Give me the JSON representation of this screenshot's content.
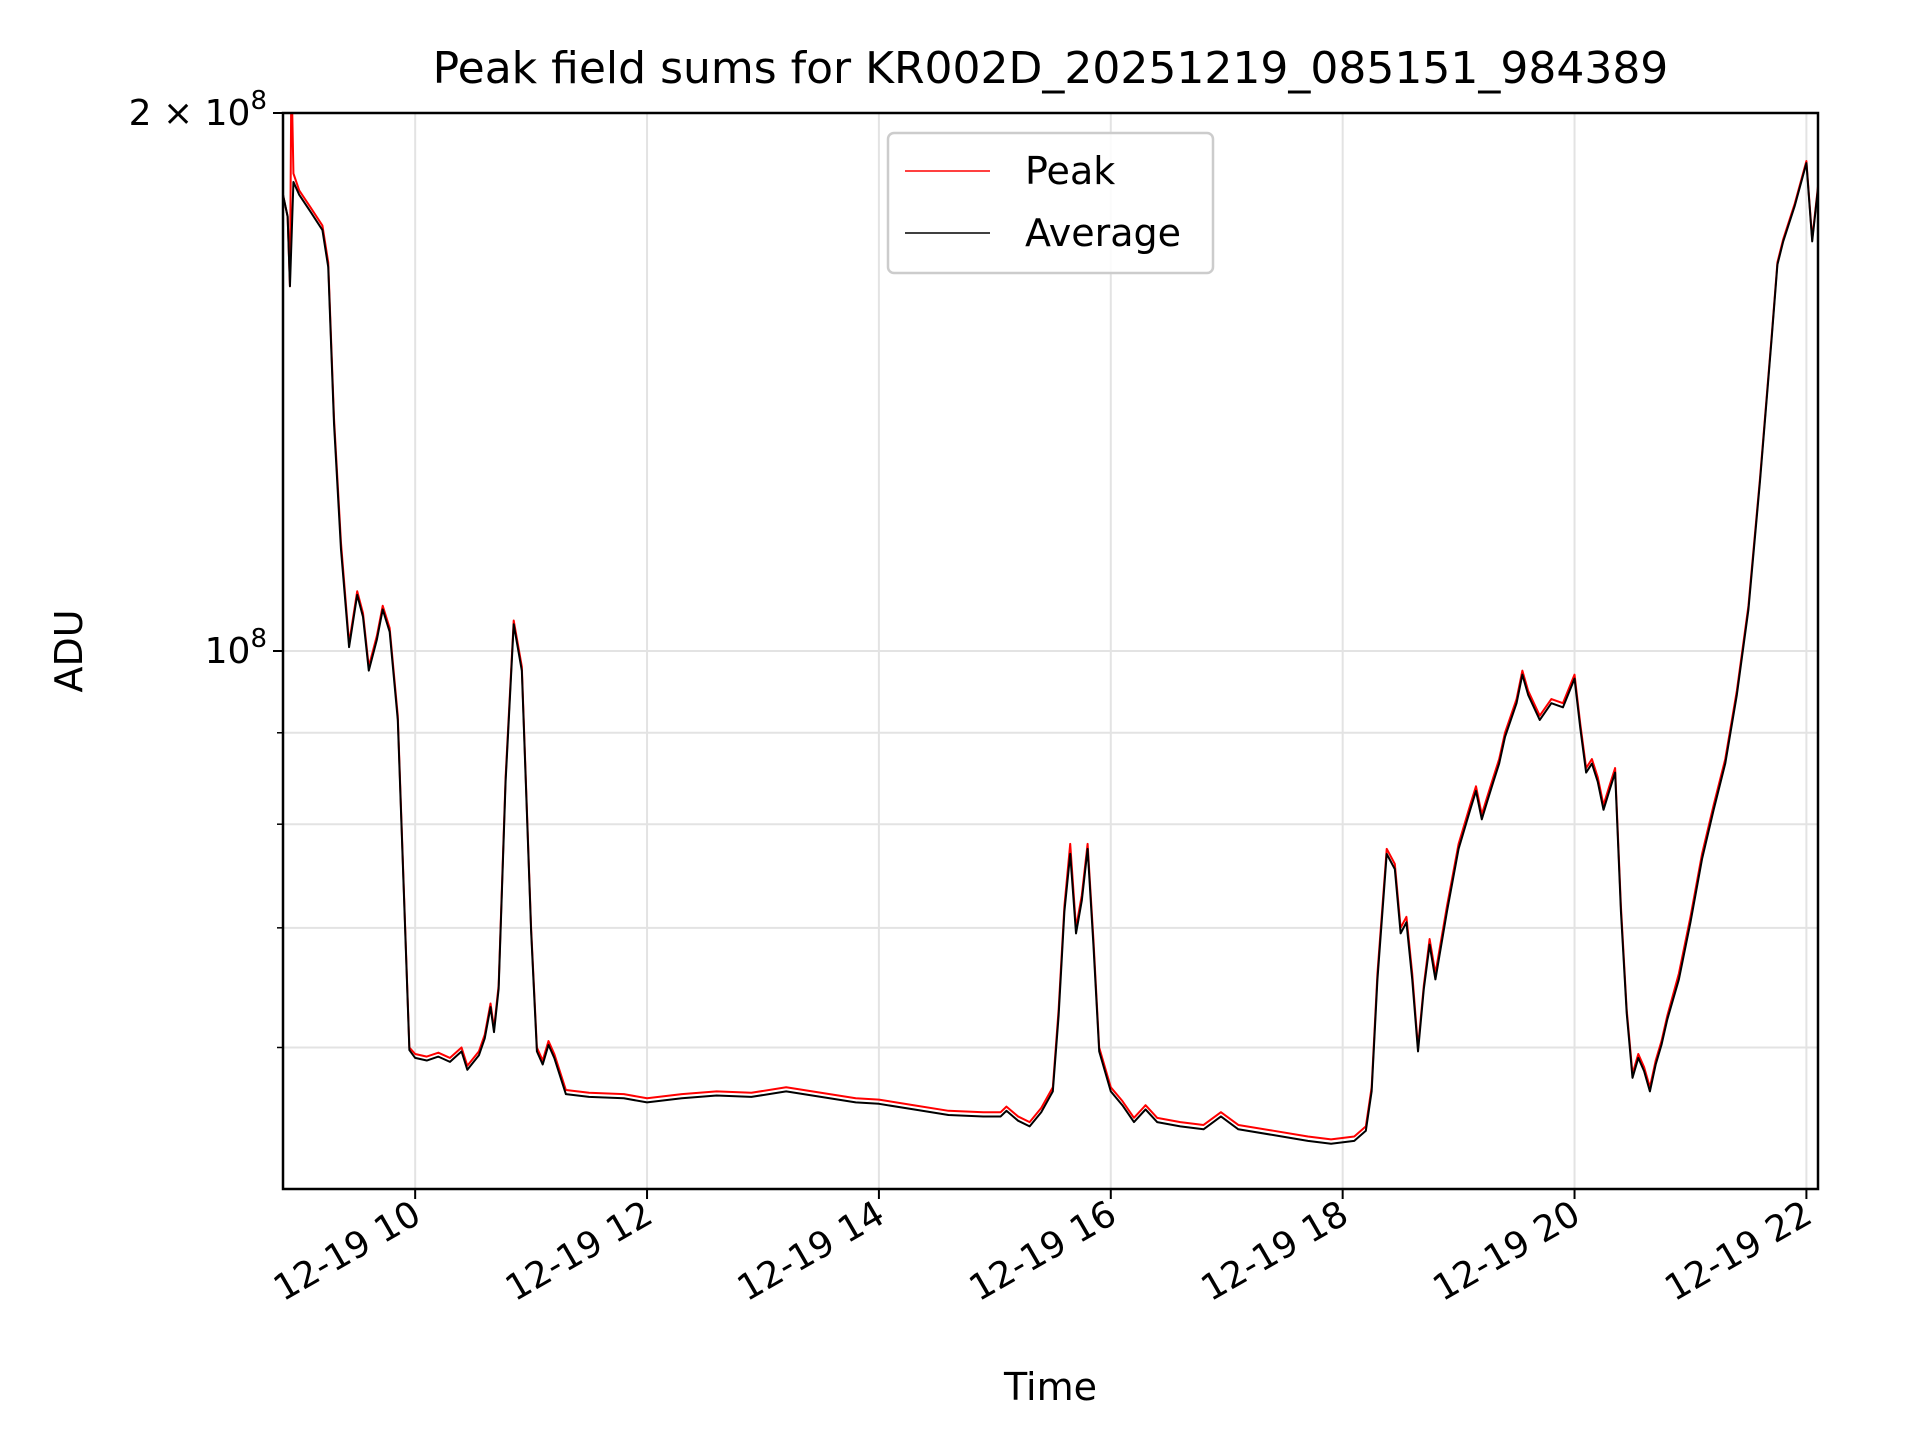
{
  "chart_data": {
    "type": "line",
    "title": "Peak field sums for KR002D_20251219_085151_984389",
    "xlabel": "Time",
    "ylabel": "ADU",
    "y_scale": "log",
    "x_unit": "hours of day (2025-12-19)",
    "xlim": [
      8.86,
      22.1
    ],
    "ylim": [
      50000000,
      200000000
    ],
    "grid": true,
    "legend": {
      "placement": "top-center",
      "entries": [
        "Peak",
        "Average"
      ]
    },
    "x_ticks": [
      {
        "value": 10,
        "label": "12-19 10"
      },
      {
        "value": 12,
        "label": "12-19 12"
      },
      {
        "value": 14,
        "label": "12-19 14"
      },
      {
        "value": 16,
        "label": "12-19 16"
      },
      {
        "value": 18,
        "label": "12-19 18"
      },
      {
        "value": 20,
        "label": "12-19 20"
      },
      {
        "value": 22,
        "label": "12-19 22"
      }
    ],
    "y_major_ticks": [
      {
        "value": 100000000,
        "base": "10",
        "exp": "8"
      },
      {
        "value": 200000000,
        "coef": "2",
        "times": "×",
        "base": "10",
        "exp": "8"
      }
    ],
    "y_minor_grid": [
      60000000,
      70000000,
      80000000,
      90000000
    ],
    "series": [
      {
        "name": "Peak",
        "color": "#ff0000",
        "points": [
          [
            8.86,
            180000000
          ],
          [
            8.9,
            175000000
          ],
          [
            8.92,
            160000000
          ],
          [
            8.93,
            200000000
          ],
          [
            8.94,
            200000000
          ],
          [
            8.95,
            185000000
          ],
          [
            9.0,
            181000000
          ],
          [
            9.1,
            177000000
          ],
          [
            9.2,
            173000000
          ],
          [
            9.25,
            165000000
          ],
          [
            9.3,
            135000000
          ],
          [
            9.36,
            115000000
          ],
          [
            9.43,
            101000000
          ],
          [
            9.5,
            108000000
          ],
          [
            9.55,
            105000000
          ],
          [
            9.6,
            98000000
          ],
          [
            9.67,
            102000000
          ],
          [
            9.72,
            106000000
          ],
          [
            9.78,
            103000000
          ],
          [
            9.85,
            92000000
          ],
          [
            9.95,
            60000000
          ],
          [
            10.0,
            59500000
          ],
          [
            10.1,
            59300000
          ],
          [
            10.2,
            59600000
          ],
          [
            10.3,
            59200000
          ],
          [
            10.4,
            60000000
          ],
          [
            10.45,
            58600000
          ],
          [
            10.55,
            59700000
          ],
          [
            10.6,
            61000000
          ],
          [
            10.65,
            63500000
          ],
          [
            10.68,
            61500000
          ],
          [
            10.72,
            65000000
          ],
          [
            10.78,
            85000000
          ],
          [
            10.85,
            104000000
          ],
          [
            10.92,
            98000000
          ],
          [
            11.0,
            70000000
          ],
          [
            11.05,
            60000000
          ],
          [
            11.1,
            59000000
          ],
          [
            11.15,
            60500000
          ],
          [
            11.2,
            59500000
          ],
          [
            11.3,
            56800000
          ],
          [
            11.5,
            56600000
          ],
          [
            11.8,
            56500000
          ],
          [
            12.0,
            56200000
          ],
          [
            12.3,
            56500000
          ],
          [
            12.6,
            56700000
          ],
          [
            12.9,
            56600000
          ],
          [
            13.2,
            57000000
          ],
          [
            13.5,
            56600000
          ],
          [
            13.8,
            56200000
          ],
          [
            14.0,
            56100000
          ],
          [
            14.3,
            55700000
          ],
          [
            14.6,
            55300000
          ],
          [
            14.9,
            55200000
          ],
          [
            15.05,
            55200000
          ],
          [
            15.1,
            55600000
          ],
          [
            15.2,
            54900000
          ],
          [
            15.3,
            54500000
          ],
          [
            15.4,
            55500000
          ],
          [
            15.5,
            57000000
          ],
          [
            15.55,
            63000000
          ],
          [
            15.6,
            72000000
          ],
          [
            15.65,
            78000000
          ],
          [
            15.7,
            70000000
          ],
          [
            15.75,
            73000000
          ],
          [
            15.8,
            78000000
          ],
          [
            15.85,
            69000000
          ],
          [
            15.9,
            60000000
          ],
          [
            16.0,
            57000000
          ],
          [
            16.1,
            56000000
          ],
          [
            16.2,
            54800000
          ],
          [
            16.3,
            55700000
          ],
          [
            16.4,
            54800000
          ],
          [
            16.6,
            54500000
          ],
          [
            16.8,
            54300000
          ],
          [
            16.95,
            55200000
          ],
          [
            17.1,
            54300000
          ],
          [
            17.4,
            53900000
          ],
          [
            17.7,
            53500000
          ],
          [
            17.9,
            53300000
          ],
          [
            18.1,
            53500000
          ],
          [
            18.2,
            54200000
          ],
          [
            18.25,
            57000000
          ],
          [
            18.3,
            66000000
          ],
          [
            18.38,
            77500000
          ],
          [
            18.45,
            76000000
          ],
          [
            18.5,
            70000000
          ],
          [
            18.55,
            71000000
          ],
          [
            18.6,
            66000000
          ],
          [
            18.65,
            60000000
          ],
          [
            18.7,
            65000000
          ],
          [
            18.75,
            69000000
          ],
          [
            18.8,
            66000000
          ],
          [
            18.9,
            72000000
          ],
          [
            19.0,
            78000000
          ],
          [
            19.1,
            82000000
          ],
          [
            19.15,
            84000000
          ],
          [
            19.2,
            81000000
          ],
          [
            19.25,
            83000000
          ],
          [
            19.3,
            85000000
          ],
          [
            19.35,
            87000000
          ],
          [
            19.4,
            90000000
          ],
          [
            19.5,
            94000000
          ],
          [
            19.55,
            97500000
          ],
          [
            19.6,
            95000000
          ],
          [
            19.7,
            92000000
          ],
          [
            19.8,
            94000000
          ],
          [
            19.9,
            93500000
          ],
          [
            20.0,
            97000000
          ],
          [
            20.05,
            91000000
          ],
          [
            20.1,
            86000000
          ],
          [
            20.15,
            87000000
          ],
          [
            20.2,
            85000000
          ],
          [
            20.25,
            82000000
          ],
          [
            20.3,
            84000000
          ],
          [
            20.35,
            86000000
          ],
          [
            20.4,
            72000000
          ],
          [
            20.45,
            63000000
          ],
          [
            20.5,
            58000000
          ],
          [
            20.55,
            59500000
          ],
          [
            20.6,
            58500000
          ],
          [
            20.65,
            57000000
          ],
          [
            20.7,
            59000000
          ],
          [
            20.75,
            60500000
          ],
          [
            20.8,
            62500000
          ],
          [
            20.9,
            66000000
          ],
          [
            21.0,
            71000000
          ],
          [
            21.1,
            77000000
          ],
          [
            21.2,
            82000000
          ],
          [
            21.3,
            87000000
          ],
          [
            21.4,
            95000000
          ],
          [
            21.5,
            106000000
          ],
          [
            21.6,
            125000000
          ],
          [
            21.7,
            150000000
          ],
          [
            21.75,
            165000000
          ],
          [
            21.8,
            170000000
          ],
          [
            21.9,
            178000000
          ],
          [
            22.0,
            188000000
          ],
          [
            22.05,
            170000000
          ],
          [
            22.1,
            182000000
          ]
        ]
      },
      {
        "name": "Average",
        "color": "#000000",
        "points": [
          [
            8.86,
            180000000
          ],
          [
            8.9,
            175000000
          ],
          [
            8.92,
            160000000
          ],
          [
            8.95,
            183000000
          ],
          [
            9.0,
            180000000
          ],
          [
            9.1,
            176000000
          ],
          [
            9.2,
            172000000
          ],
          [
            9.25,
            164000000
          ],
          [
            9.3,
            134000000
          ],
          [
            9.36,
            114000000
          ],
          [
            9.43,
            100500000
          ],
          [
            9.5,
            107500000
          ],
          [
            9.55,
            104500000
          ],
          [
            9.6,
            97500000
          ],
          [
            9.67,
            101500000
          ],
          [
            9.72,
            105500000
          ],
          [
            9.78,
            102500000
          ],
          [
            9.85,
            91500000
          ],
          [
            9.95,
            59800000
          ],
          [
            10.0,
            59200000
          ],
          [
            10.1,
            59000000
          ],
          [
            10.2,
            59300000
          ],
          [
            10.3,
            58900000
          ],
          [
            10.4,
            59700000
          ],
          [
            10.45,
            58300000
          ],
          [
            10.55,
            59400000
          ],
          [
            10.6,
            60700000
          ],
          [
            10.65,
            63200000
          ],
          [
            10.68,
            61200000
          ],
          [
            10.72,
            64700000
          ],
          [
            10.78,
            84500000
          ],
          [
            10.85,
            103500000
          ],
          [
            10.92,
            97500000
          ],
          [
            11.0,
            69700000
          ],
          [
            11.05,
            59700000
          ],
          [
            11.1,
            58700000
          ],
          [
            11.15,
            60200000
          ],
          [
            11.2,
            59200000
          ],
          [
            11.3,
            56500000
          ],
          [
            11.5,
            56300000
          ],
          [
            11.8,
            56200000
          ],
          [
            12.0,
            55900000
          ],
          [
            12.3,
            56200000
          ],
          [
            12.6,
            56400000
          ],
          [
            12.9,
            56300000
          ],
          [
            13.2,
            56700000
          ],
          [
            13.5,
            56300000
          ],
          [
            13.8,
            55900000
          ],
          [
            14.0,
            55800000
          ],
          [
            14.3,
            55400000
          ],
          [
            14.6,
            55000000
          ],
          [
            14.9,
            54900000
          ],
          [
            15.05,
            54900000
          ],
          [
            15.1,
            55300000
          ],
          [
            15.2,
            54600000
          ],
          [
            15.3,
            54200000
          ],
          [
            15.4,
            55200000
          ],
          [
            15.5,
            56700000
          ],
          [
            15.55,
            62500000
          ],
          [
            15.6,
            71500000
          ],
          [
            15.65,
            77000000
          ],
          [
            15.7,
            69500000
          ],
          [
            15.75,
            72500000
          ],
          [
            15.8,
            77500000
          ],
          [
            15.85,
            68500000
          ],
          [
            15.9,
            59700000
          ],
          [
            16.0,
            56700000
          ],
          [
            16.1,
            55700000
          ],
          [
            16.2,
            54500000
          ],
          [
            16.3,
            55400000
          ],
          [
            16.4,
            54500000
          ],
          [
            16.6,
            54200000
          ],
          [
            16.8,
            54000000
          ],
          [
            16.95,
            54900000
          ],
          [
            17.1,
            54000000
          ],
          [
            17.4,
            53600000
          ],
          [
            17.7,
            53200000
          ],
          [
            17.9,
            53000000
          ],
          [
            18.1,
            53200000
          ],
          [
            18.2,
            53900000
          ],
          [
            18.25,
            56700000
          ],
          [
            18.3,
            65500000
          ],
          [
            18.38,
            77000000
          ],
          [
            18.45,
            75500000
          ],
          [
            18.5,
            69500000
          ],
          [
            18.55,
            70500000
          ],
          [
            18.6,
            65500000
          ],
          [
            18.65,
            59700000
          ],
          [
            18.7,
            64700000
          ],
          [
            18.75,
            68500000
          ],
          [
            18.8,
            65500000
          ],
          [
            18.9,
            71500000
          ],
          [
            19.0,
            77500000
          ],
          [
            19.1,
            81500000
          ],
          [
            19.15,
            83500000
          ],
          [
            19.2,
            80500000
          ],
          [
            19.25,
            82500000
          ],
          [
            19.3,
            84500000
          ],
          [
            19.35,
            86500000
          ],
          [
            19.4,
            89500000
          ],
          [
            19.5,
            93500000
          ],
          [
            19.55,
            97000000
          ],
          [
            19.6,
            94500000
          ],
          [
            19.7,
            91500000
          ],
          [
            19.8,
            93500000
          ],
          [
            19.9,
            93000000
          ],
          [
            20.0,
            96500000
          ],
          [
            20.05,
            90500000
          ],
          [
            20.1,
            85500000
          ],
          [
            20.15,
            86500000
          ],
          [
            20.2,
            84500000
          ],
          [
            20.25,
            81500000
          ],
          [
            20.3,
            83500000
          ],
          [
            20.35,
            85500000
          ],
          [
            20.4,
            71500000
          ],
          [
            20.45,
            62700000
          ],
          [
            20.5,
            57700000
          ],
          [
            20.55,
            59200000
          ],
          [
            20.6,
            58200000
          ],
          [
            20.65,
            56700000
          ],
          [
            20.7,
            58700000
          ],
          [
            20.75,
            60200000
          ],
          [
            20.8,
            62200000
          ],
          [
            20.9,
            65500000
          ],
          [
            21.0,
            70500000
          ],
          [
            21.1,
            76500000
          ],
          [
            21.2,
            81500000
          ],
          [
            21.3,
            86500000
          ],
          [
            21.4,
            94500000
          ],
          [
            21.5,
            105500000
          ],
          [
            21.6,
            124500000
          ],
          [
            21.7,
            149500000
          ],
          [
            21.75,
            164500000
          ],
          [
            21.8,
            169500000
          ],
          [
            21.9,
            177500000
          ],
          [
            22.0,
            187500000
          ],
          [
            22.05,
            169500000
          ],
          [
            22.1,
            181500000
          ]
        ]
      }
    ]
  }
}
